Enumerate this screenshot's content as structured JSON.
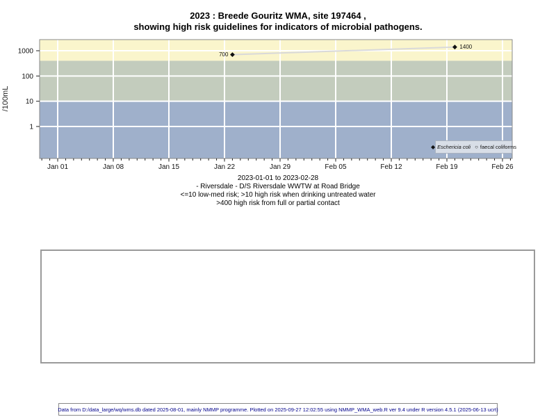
{
  "title": {
    "line1": "2023 : Breede Gouritz WMA, site 197464 ,",
    "line2": "showing high risk guidelines for indicators of microbial pathogens."
  },
  "caption": {
    "line1": "2023-01-01 to 2023-02-28",
    "line2": "- Riversdale - D/S Riversdale WWTW at Road Bridge",
    "line3": "<=10 low-med risk; >10 high risk when drinking untreated water",
    "line4": ">400 high risk from full or partial contact"
  },
  "footer": {
    "text": "Data from D:/data_large/wq/wms.db dated 2025-08-01, mainly NMMP programme. Plotted on 2025-09-27 12:02:55 using NMMP_WMA_web.R ver 9.4 under R version 4.5.1 (2025-06-13 ucrt)"
  },
  "legend": {
    "items": [
      {
        "marker": "filled-diamond",
        "label": "Eschericia coli",
        "italic": true
      },
      {
        "marker": "open-circle",
        "label": "faecal coliforms",
        "italic": false
      }
    ]
  },
  "chart_data": {
    "type": "scatter",
    "title": "2023 : Breede Gouritz WMA, site 197464 , showing high risk guidelines for indicators of microbial pathogens.",
    "xlabel": "",
    "ylabel": "/100mL",
    "y_scale": "log10",
    "y_ticks": [
      1,
      10,
      100,
      1000
    ],
    "ylim": [
      0.055,
      2760
    ],
    "x_start": "2023-01-01",
    "x_end": "2023-02-28",
    "x_tick_labels": [
      "Jan 01",
      "Jan 08",
      "Jan 15",
      "Jan 22",
      "Jan 29",
      "Feb 05",
      "Feb 12",
      "Feb 19",
      "Feb 26"
    ],
    "x_minor_ticks": "daily",
    "grid": "white gridlines at weekly x ticks and decade y ticks",
    "legend_position": "bottom-right",
    "bands": [
      {
        "label": ">400 high risk from full or partial contact",
        "min": 400,
        "max": 2760,
        "color": "#FAF5CC"
      },
      {
        "label": ">10 high risk when drinking untreated water",
        "min": 10,
        "max": 400,
        "color": "#C3CCBD"
      },
      {
        "label": "<=10 low-med risk",
        "min": 0.055,
        "max": 10,
        "color": "#9FB0CB"
      }
    ],
    "series": [
      {
        "name": "Eschericia coli",
        "marker": "filled-diamond",
        "color": "#101010",
        "line_color": "#D9D9D9",
        "points": [
          {
            "date": "2023-01-23",
            "day_index": 22,
            "value": 700,
            "label": "700",
            "label_side": "left"
          },
          {
            "date": "2023-02-20",
            "day_index": 50,
            "value": 1400,
            "label": "1400",
            "label_side": "right"
          }
        ]
      },
      {
        "name": "faecal coliforms",
        "marker": "open-circle",
        "color": "#101010",
        "points": []
      }
    ]
  }
}
